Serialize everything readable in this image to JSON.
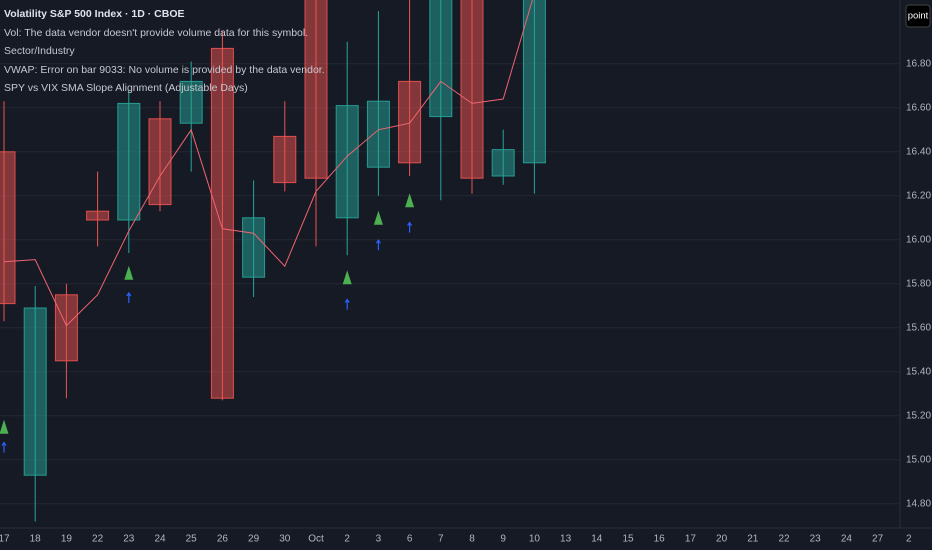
{
  "chart_data": {
    "type": "candlestick",
    "title": "Volatility S&P 500 Index · 1D · CBOE",
    "annotations": [
      "Vol: The data vendor doesn't provide volume data for this symbol.",
      "Sector/Industry",
      "VWAP: Error on bar 9033: No volume is provided by the data vendor.",
      "SPY vs VIX SMA Slope Alignment (Adjustable Days)"
    ],
    "badge": "point",
    "categories": [
      "17",
      "18",
      "19",
      "22",
      "23",
      "24",
      "25",
      "26",
      "29",
      "30",
      "Oct",
      "2",
      "3",
      "6",
      "7",
      "8",
      "9",
      "10",
      "13",
      "14",
      "15",
      "16",
      "17",
      "20",
      "21",
      "22",
      "23",
      "24",
      "27",
      "2"
    ],
    "open": [
      16.4,
      14.93,
      15.75,
      16.13,
      16.09,
      16.55,
      16.53,
      16.87,
      15.83,
      16.47,
      17.12,
      16.1,
      16.33,
      16.72,
      16.56,
      17.15,
      16.29,
      16.35,
      null,
      null,
      null,
      null,
      null,
      null,
      null,
      null,
      null,
      null,
      null,
      null
    ],
    "high": [
      16.63,
      15.79,
      15.8,
      16.31,
      16.68,
      16.63,
      16.81,
      16.95,
      16.27,
      16.63,
      17.2,
      16.9,
      17.04,
      17.1,
      17.25,
      17.25,
      16.5,
      17.25,
      null,
      null,
      null,
      null,
      null,
      null,
      null,
      null,
      null,
      null,
      null,
      null
    ],
    "low": [
      15.63,
      14.72,
      15.28,
      15.97,
      15.94,
      16.13,
      16.31,
      15.27,
      15.74,
      16.22,
      15.97,
      15.93,
      16.2,
      16.29,
      16.18,
      16.21,
      16.25,
      16.21,
      null,
      null,
      null,
      null,
      null,
      null,
      null,
      null,
      null,
      null,
      null,
      null
    ],
    "close": [
      15.71,
      15.69,
      15.45,
      16.09,
      16.62,
      16.16,
      16.72,
      15.28,
      16.1,
      16.26,
      16.28,
      16.61,
      16.63,
      16.35,
      17.15,
      16.28,
      16.41,
      17.15,
      null,
      null,
      null,
      null,
      null,
      null,
      null,
      null,
      null,
      null,
      null,
      null
    ],
    "up_color": "#26a69a",
    "down_color": "#ef5350",
    "line": {
      "color": "#f06470",
      "values": [
        15.9,
        15.91,
        15.61,
        15.75,
        16.04,
        16.29,
        16.5,
        16.05,
        16.03,
        15.88,
        16.22,
        16.38,
        16.5,
        16.53,
        16.72,
        16.62,
        16.64,
        17.12,
        null,
        null,
        null,
        null,
        null,
        null,
        null,
        null,
        null,
        null,
        null,
        null
      ]
    },
    "up_signals": {
      "color": "#4caf50",
      "values": [
        15.15,
        null,
        null,
        null,
        15.85,
        null,
        null,
        null,
        null,
        null,
        null,
        15.83,
        16.1,
        16.18,
        null,
        null,
        null,
        null,
        null,
        null,
        null,
        null,
        null,
        null,
        null,
        null,
        null,
        null,
        null,
        null
      ]
    },
    "arrow_signals": {
      "color": "#2962ff",
      "values": [
        15.06,
        null,
        null,
        null,
        15.74,
        null,
        null,
        null,
        null,
        null,
        null,
        15.71,
        15.98,
        16.06,
        null,
        null,
        null,
        null,
        null,
        null,
        null,
        null,
        null,
        null,
        null,
        null,
        null,
        null,
        null,
        null
      ]
    },
    "ylim": [
      14.69,
      17.09
    ],
    "yticks": [
      {
        "value": 14.8,
        "label": "14.80"
      },
      {
        "value": 15,
        "label": "15.00"
      },
      {
        "value": 15.2,
        "label": "15.20"
      },
      {
        "value": 15.4,
        "label": "15.40"
      },
      {
        "value": 15.6,
        "label": "15.60"
      },
      {
        "value": 15.8,
        "label": "15.80"
      },
      {
        "value": 16,
        "label": "16.00"
      },
      {
        "value": 16.2,
        "label": "16.20"
      },
      {
        "value": 16.4,
        "label": "16.40"
      },
      {
        "value": 16.6,
        "label": "16.60"
      },
      {
        "value": 16.8,
        "label": "16.80"
      }
    ],
    "grid": true
  }
}
